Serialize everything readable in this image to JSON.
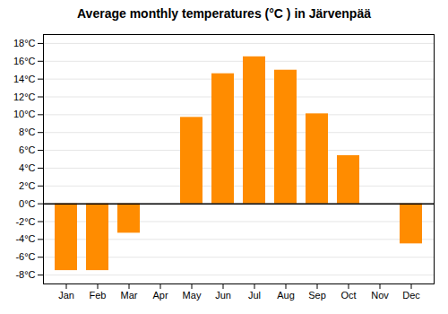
{
  "chart_data": {
    "type": "bar",
    "title": "Average monthly temperatures (°C ) in Järvenpää",
    "categories": [
      "Jan",
      "Feb",
      "Mar",
      "Apr",
      "May",
      "Jun",
      "Jul",
      "Aug",
      "Sep",
      "Oct",
      "Nov",
      "Dec"
    ],
    "values": [
      -7.5,
      -7.5,
      -3.3,
      0.0,
      9.7,
      14.6,
      16.5,
      15.0,
      10.1,
      5.4,
      0.0,
      -4.5
    ],
    "color": "#ff8c00",
    "ylim": [
      -9,
      19
    ],
    "yticks": [
      {
        "value": -8,
        "label": "-8°C"
      },
      {
        "value": -6,
        "label": "-6°C"
      },
      {
        "value": -4,
        "label": "-4°C"
      },
      {
        "value": -2,
        "label": "-2°C"
      },
      {
        "value": 0,
        "label": "0°C"
      },
      {
        "value": 2,
        "label": "2°C"
      },
      {
        "value": 4,
        "label": "4°C"
      },
      {
        "value": 6,
        "label": "6°C"
      },
      {
        "value": 8,
        "label": "8°C"
      },
      {
        "value": 10,
        "label": "10°C"
      },
      {
        "value": 12,
        "label": "12°C"
      },
      {
        "value": 14,
        "label": "14°C"
      },
      {
        "value": 16,
        "label": "16°C"
      },
      {
        "value": 18,
        "label": "18°C"
      }
    ],
    "grid": true
  }
}
